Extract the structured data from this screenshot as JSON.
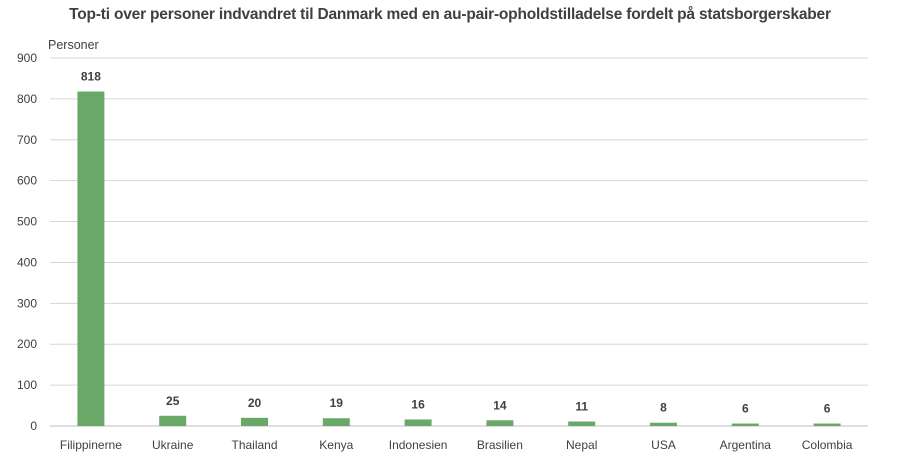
{
  "chart_data": {
    "type": "bar",
    "title": "Top-ti over personer indvandret til Danmark med en au-pair-opholdstilladelse fordelt på statsborgerskaber",
    "ylabel": "Personer",
    "xlabel": "",
    "ylim": [
      0,
      900
    ],
    "yticks": [
      "0",
      "100",
      "200",
      "300",
      "400",
      "500",
      "600",
      "700",
      "800",
      "900"
    ],
    "grid": true,
    "bar_color": "#6aa86a",
    "categories": [
      "Filippinerne",
      "Ukraine",
      "Thailand",
      "Kenya",
      "Indonesien",
      "Brasilien",
      "Nepal",
      "USA",
      "Argentina",
      "Colombia"
    ],
    "values": [
      818,
      25,
      20,
      19,
      16,
      14,
      11,
      8,
      6,
      6
    ],
    "data_labels": [
      "818",
      "25",
      "20",
      "19",
      "16",
      "14",
      "11",
      "8",
      "6",
      "6"
    ]
  }
}
